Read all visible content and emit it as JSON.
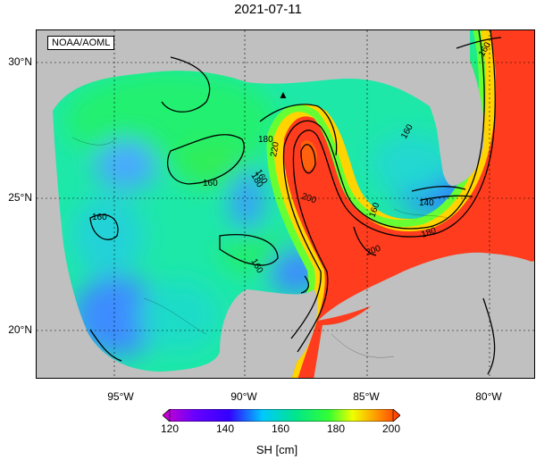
{
  "title": "2021-07-11",
  "credit": "NOAA/AOML",
  "axes": {
    "lat_labels": [
      "30°N",
      "25°N",
      "20°N"
    ],
    "lon_labels": [
      "95°W",
      "90°W",
      "85°W",
      "80°W"
    ]
  },
  "colorbar": {
    "ticks": [
      "120",
      "140",
      "160",
      "180",
      "200"
    ],
    "label": "SH [cm]",
    "colors": [
      "#cc00cc",
      "#3300ff",
      "#00c8ff",
      "#00e68c",
      "#33ff33",
      "#f0ff00",
      "#ff9900",
      "#ff3300"
    ]
  },
  "contour_labels": [
    "160",
    "160",
    "160",
    "160",
    "160",
    "160",
    "140",
    "180",
    "180",
    "200",
    "200",
    "220",
    "160",
    "180"
  ],
  "land_color": "#c0c0c0",
  "marker_symbol": "▲"
}
